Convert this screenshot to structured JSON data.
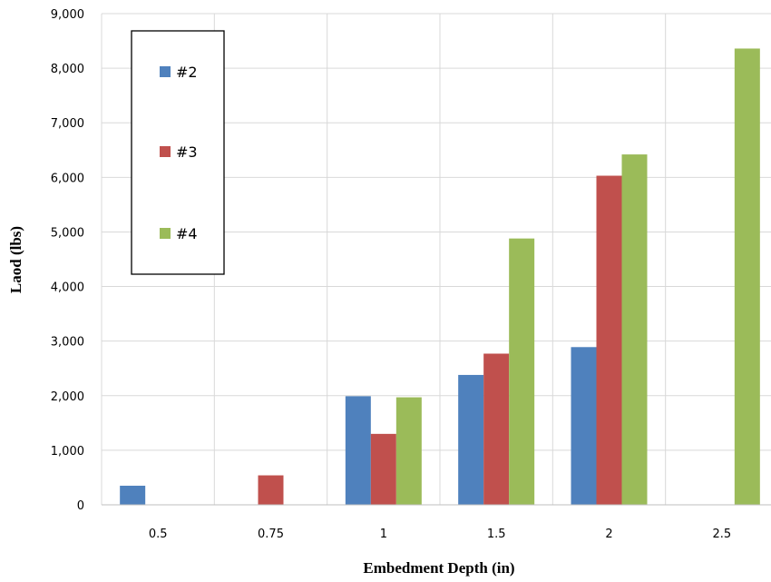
{
  "chart_data": {
    "type": "bar",
    "title": "",
    "xlabel": "Embedment Depth (in)",
    "ylabel": "Laod (lbs)",
    "categories": [
      "0.5",
      "0.75",
      "1",
      "1.5",
      "2",
      "2.5"
    ],
    "ylim": [
      0,
      9000
    ],
    "yticks": [
      "0",
      "1,000",
      "2,000",
      "3,000",
      "4,000",
      "5,000",
      "6,000",
      "7,000",
      "8,000",
      "9,000"
    ],
    "ytick_values": [
      0,
      1000,
      2000,
      3000,
      4000,
      5000,
      6000,
      7000,
      8000,
      9000
    ],
    "grid": true,
    "legend_position": "top-left",
    "series": [
      {
        "name": "#2",
        "color": "#4f81bd",
        "values": [
          350,
          null,
          1990,
          2380,
          2890,
          null
        ]
      },
      {
        "name": "#3",
        "color": "#c0504d",
        "values": [
          null,
          540,
          1300,
          2770,
          6030,
          null
        ]
      },
      {
        "name": "#4",
        "color": "#9bbb59",
        "values": [
          null,
          null,
          1970,
          4880,
          6420,
          8360
        ]
      }
    ]
  }
}
